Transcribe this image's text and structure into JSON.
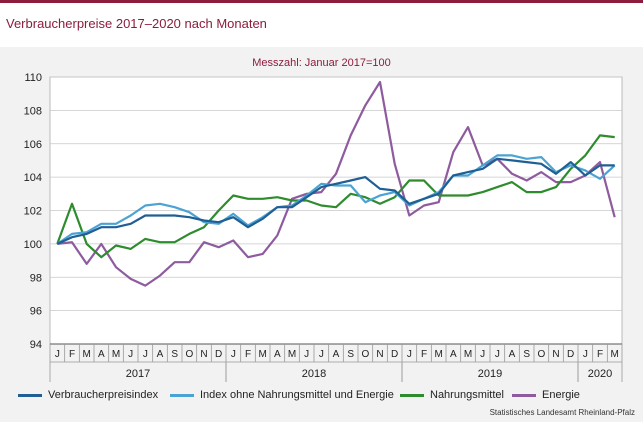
{
  "header": {
    "title": "Verbraucherpreise 2017–2020 nach Monaten"
  },
  "footer": {
    "source": "Statistisches Landesamt Rheinland-Pfalz"
  },
  "chart_data": {
    "type": "line",
    "title": "Messzahl: Januar 2017=100",
    "xlabel": "",
    "ylabel": "",
    "ylim": [
      94,
      110
    ],
    "yticks": [
      94,
      96,
      98,
      100,
      102,
      104,
      106,
      108,
      110
    ],
    "grid": true,
    "legend_position": "bottom",
    "month_letters": [
      "J",
      "F",
      "M",
      "A",
      "M",
      "J",
      "J",
      "A",
      "S",
      "O",
      "N",
      "D",
      "J",
      "F",
      "M",
      "A",
      "M",
      "J",
      "J",
      "A",
      "S",
      "O",
      "N",
      "D",
      "J",
      "F",
      "M",
      "A",
      "M",
      "J",
      "J",
      "A",
      "S",
      "O",
      "N",
      "D",
      "J",
      "F",
      "M"
    ],
    "years": [
      {
        "label": "2017",
        "start": 0,
        "count": 12
      },
      {
        "label": "2018",
        "start": 12,
        "count": 12
      },
      {
        "label": "2019",
        "start": 24,
        "count": 12
      },
      {
        "label": "2020",
        "start": 36,
        "count": 3
      }
    ],
    "series": [
      {
        "name": "Verbraucherpreisindex",
        "color": "#1f5f94",
        "values": [
          100.0,
          100.4,
          100.6,
          101.0,
          101.0,
          101.2,
          101.7,
          101.7,
          101.7,
          101.6,
          101.4,
          101.3,
          101.6,
          101.0,
          101.5,
          102.2,
          102.2,
          102.8,
          103.4,
          103.6,
          103.8,
          104.0,
          103.3,
          103.2,
          102.4,
          102.7,
          103.0,
          104.1,
          104.3,
          104.5,
          105.1,
          105.0,
          104.9,
          104.8,
          104.2,
          104.9,
          104.1,
          104.7,
          104.7
        ]
      },
      {
        "name": "Index ohne Nahrungsmittel und Energie",
        "color": "#4ba3d3",
        "values": [
          100.0,
          100.6,
          100.7,
          101.2,
          101.2,
          101.7,
          102.3,
          102.4,
          102.2,
          101.9,
          101.3,
          101.2,
          101.8,
          101.1,
          101.6,
          102.2,
          102.3,
          102.9,
          103.6,
          103.5,
          103.5,
          102.5,
          102.9,
          103.1,
          102.3,
          102.7,
          103.1,
          104.1,
          104.1,
          104.7,
          105.3,
          105.3,
          105.1,
          105.2,
          104.3,
          104.7,
          104.4,
          103.9,
          104.7
        ]
      },
      {
        "name": "Nahrungsmittel",
        "color": "#2e8b2e",
        "values": [
          100.0,
          102.4,
          100.0,
          99.2,
          99.9,
          99.7,
          100.3,
          100.1,
          100.1,
          100.6,
          101.0,
          102.0,
          102.9,
          102.7,
          102.7,
          102.8,
          102.6,
          102.6,
          102.3,
          102.2,
          103.0,
          102.8,
          102.4,
          102.8,
          103.8,
          103.8,
          102.9,
          102.9,
          102.9,
          103.1,
          103.4,
          103.7,
          103.1,
          103.1,
          103.4,
          104.5,
          105.3,
          106.5,
          106.4
        ]
      },
      {
        "name": "Energie",
        "color": "#8e5b9e",
        "values": [
          100.0,
          100.1,
          98.8,
          100.0,
          98.6,
          97.9,
          97.5,
          98.1,
          98.9,
          98.9,
          100.1,
          99.8,
          100.2,
          99.2,
          99.4,
          100.5,
          102.7,
          103.0,
          103.1,
          104.2,
          106.5,
          108.3,
          109.7,
          104.8,
          101.7,
          102.3,
          102.5,
          105.5,
          107.0,
          104.7,
          105.1,
          104.2,
          103.8,
          104.3,
          103.7,
          103.7,
          104.1,
          104.9,
          101.6
        ]
      }
    ]
  }
}
